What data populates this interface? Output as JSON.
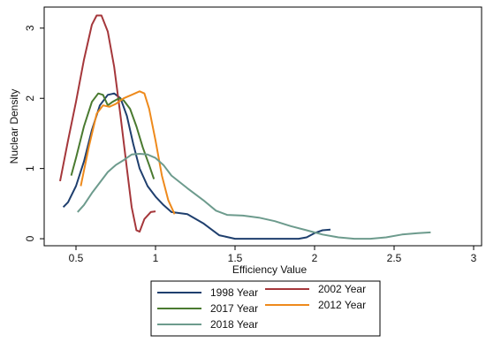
{
  "chart_data": {
    "type": "line",
    "title": "",
    "xlabel": "Efficiency Value",
    "ylabel": "Nuclear Density",
    "xlim": [
      0.3,
      3.05
    ],
    "ylim": [
      -0.1,
      3.3
    ],
    "xticks": [
      "0.5",
      "1",
      "1.5",
      "2",
      "2.5",
      "3"
    ],
    "yticks": [
      "0",
      "1",
      "2",
      "3"
    ],
    "grid": false,
    "legend_position": "bottom",
    "series": [
      {
        "name": "1998 Year",
        "color": "#1f3f6e",
        "points": [
          [
            0.42,
            0.45
          ],
          [
            0.45,
            0.52
          ],
          [
            0.5,
            0.75
          ],
          [
            0.55,
            1.1
          ],
          [
            0.6,
            1.55
          ],
          [
            0.65,
            1.9
          ],
          [
            0.7,
            2.05
          ],
          [
            0.74,
            2.07
          ],
          [
            0.78,
            2.0
          ],
          [
            0.82,
            1.75
          ],
          [
            0.86,
            1.35
          ],
          [
            0.9,
            1.0
          ],
          [
            0.95,
            0.75
          ],
          [
            1.0,
            0.6
          ],
          [
            1.05,
            0.48
          ],
          [
            1.1,
            0.38
          ],
          [
            1.2,
            0.35
          ],
          [
            1.3,
            0.22
          ],
          [
            1.4,
            0.05
          ],
          [
            1.5,
            0.0
          ],
          [
            1.6,
            0.0
          ],
          [
            1.75,
            0.0
          ],
          [
            1.9,
            0.0
          ],
          [
            1.95,
            0.02
          ],
          [
            2.0,
            0.08
          ],
          [
            2.05,
            0.12
          ],
          [
            2.1,
            0.13
          ]
        ]
      },
      {
        "name": "2002 Year",
        "color": "#a5373b",
        "points": [
          [
            0.4,
            0.82
          ],
          [
            0.45,
            1.4
          ],
          [
            0.5,
            1.95
          ],
          [
            0.55,
            2.55
          ],
          [
            0.6,
            3.05
          ],
          [
            0.63,
            3.18
          ],
          [
            0.66,
            3.18
          ],
          [
            0.7,
            2.95
          ],
          [
            0.74,
            2.45
          ],
          [
            0.78,
            1.75
          ],
          [
            0.82,
            1.0
          ],
          [
            0.85,
            0.45
          ],
          [
            0.88,
            0.12
          ],
          [
            0.9,
            0.1
          ],
          [
            0.93,
            0.28
          ],
          [
            0.97,
            0.38
          ],
          [
            1.0,
            0.39
          ]
        ]
      },
      {
        "name": "2017 Year",
        "color": "#4a7a30",
        "points": [
          [
            0.47,
            0.9
          ],
          [
            0.5,
            1.15
          ],
          [
            0.55,
            1.6
          ],
          [
            0.6,
            1.95
          ],
          [
            0.64,
            2.07
          ],
          [
            0.67,
            2.05
          ],
          [
            0.7,
            1.9
          ],
          [
            0.73,
            1.95
          ],
          [
            0.77,
            2.0
          ],
          [
            0.8,
            1.97
          ],
          [
            0.84,
            1.85
          ],
          [
            0.88,
            1.6
          ],
          [
            0.92,
            1.3
          ],
          [
            0.96,
            1.05
          ],
          [
            0.99,
            0.85
          ]
        ]
      },
      {
        "name": "2012 Year",
        "color": "#ee8a1c",
        "points": [
          [
            0.53,
            0.75
          ],
          [
            0.58,
            1.3
          ],
          [
            0.63,
            1.78
          ],
          [
            0.67,
            1.9
          ],
          [
            0.71,
            1.88
          ],
          [
            0.75,
            1.92
          ],
          [
            0.8,
            2.0
          ],
          [
            0.85,
            2.05
          ],
          [
            0.9,
            2.1
          ],
          [
            0.93,
            2.07
          ],
          [
            0.96,
            1.85
          ],
          [
            1.0,
            1.4
          ],
          [
            1.04,
            0.9
          ],
          [
            1.08,
            0.55
          ],
          [
            1.12,
            0.35
          ]
        ]
      },
      {
        "name": "2018 Year",
        "color": "#6d9b8d",
        "points": [
          [
            0.51,
            0.38
          ],
          [
            0.55,
            0.48
          ],
          [
            0.6,
            0.65
          ],
          [
            0.65,
            0.8
          ],
          [
            0.7,
            0.95
          ],
          [
            0.75,
            1.05
          ],
          [
            0.8,
            1.12
          ],
          [
            0.85,
            1.2
          ],
          [
            0.9,
            1.21
          ],
          [
            0.95,
            1.2
          ],
          [
            1.0,
            1.15
          ],
          [
            1.05,
            1.05
          ],
          [
            1.1,
            0.9
          ],
          [
            1.2,
            0.72
          ],
          [
            1.3,
            0.55
          ],
          [
            1.38,
            0.4
          ],
          [
            1.45,
            0.34
          ],
          [
            1.55,
            0.33
          ],
          [
            1.65,
            0.3
          ],
          [
            1.75,
            0.25
          ],
          [
            1.85,
            0.18
          ],
          [
            1.95,
            0.12
          ],
          [
            2.05,
            0.06
          ],
          [
            2.15,
            0.02
          ],
          [
            2.25,
            0.0
          ],
          [
            2.35,
            0.0
          ],
          [
            2.45,
            0.02
          ],
          [
            2.55,
            0.06
          ],
          [
            2.65,
            0.08
          ],
          [
            2.73,
            0.09
          ]
        ]
      }
    ]
  }
}
